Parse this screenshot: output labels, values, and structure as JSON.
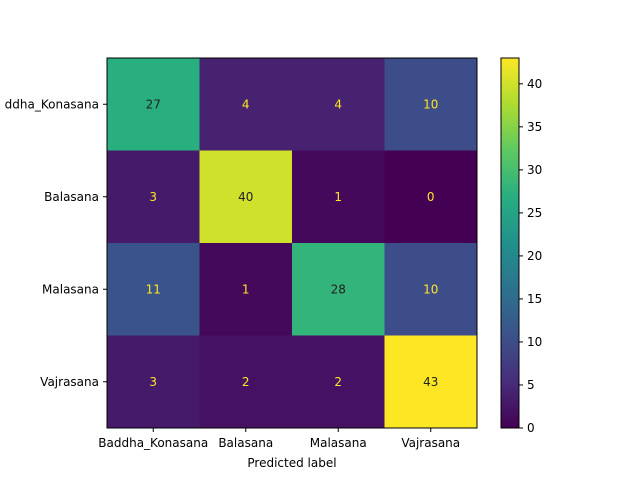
{
  "chart_data": {
    "type": "heatmap",
    "title": "",
    "xlabel": "Predicted label",
    "ylabel": "",
    "x_categories": [
      "Baddha_Konasana",
      "Balasana",
      "Malasana",
      "Vajrasana"
    ],
    "y_categories": [
      "Baddha_Konasana",
      "Balasana",
      "Malasana",
      "Vajrasana"
    ],
    "y_tick_labels_visible": [
      "ddha_Konasana",
      "Balasana",
      "Malasana",
      "Vajrasana"
    ],
    "matrix": [
      [
        27,
        4,
        4,
        10
      ],
      [
        3,
        40,
        1,
        0
      ],
      [
        11,
        1,
        28,
        10
      ],
      [
        3,
        2,
        2,
        43
      ]
    ],
    "colormap": "viridis",
    "vmin": 0,
    "vmax": 43,
    "colorbar_ticks": [
      0,
      5,
      10,
      15,
      20,
      25,
      30,
      35,
      40
    ],
    "cell_text_light_color": "#fde725",
    "cell_text_dark_color": "#222222"
  }
}
